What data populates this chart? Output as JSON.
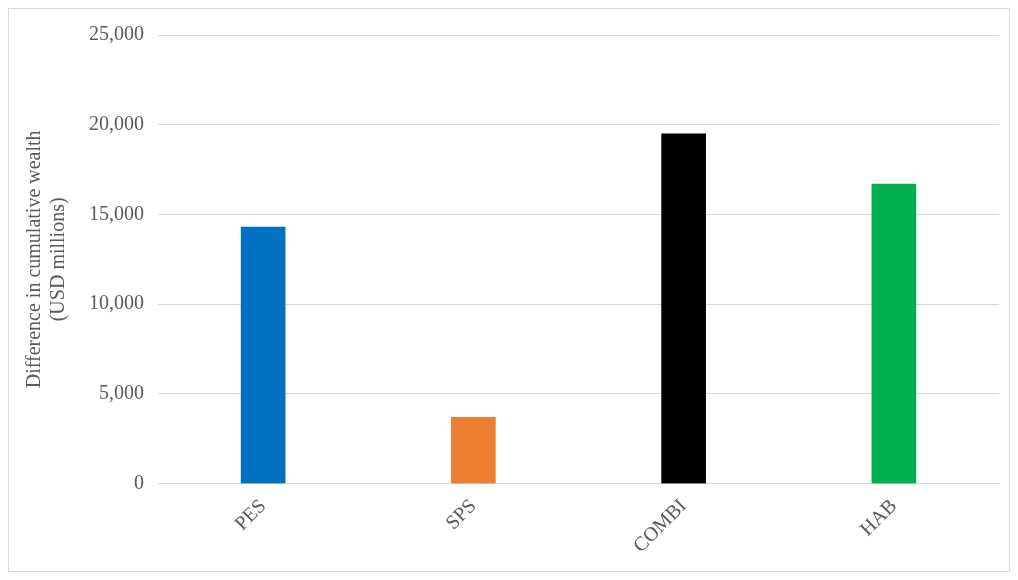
{
  "chart_data": {
    "type": "bar",
    "ylabel": "Difference in cumulative wealth (USD millions)",
    "categories": [
      "PES",
      "SPS",
      "COMBI",
      "HAB"
    ],
    "values": [
      14300,
      3700,
      19500,
      16700
    ],
    "colors": [
      "#0070c0",
      "#ed7d31",
      "#000000",
      "#00b050"
    ],
    "ylim": [
      0,
      25000
    ],
    "yticks": [
      {
        "value": 0,
        "label": "0"
      },
      {
        "value": 5000,
        "label": "5,000"
      },
      {
        "value": 10000,
        "label": "10,000"
      },
      {
        "value": 15000,
        "label": "15,000"
      },
      {
        "value": 20000,
        "label": "20,000"
      },
      {
        "value": 25000,
        "label": "25,000"
      }
    ],
    "grid": "y"
  }
}
